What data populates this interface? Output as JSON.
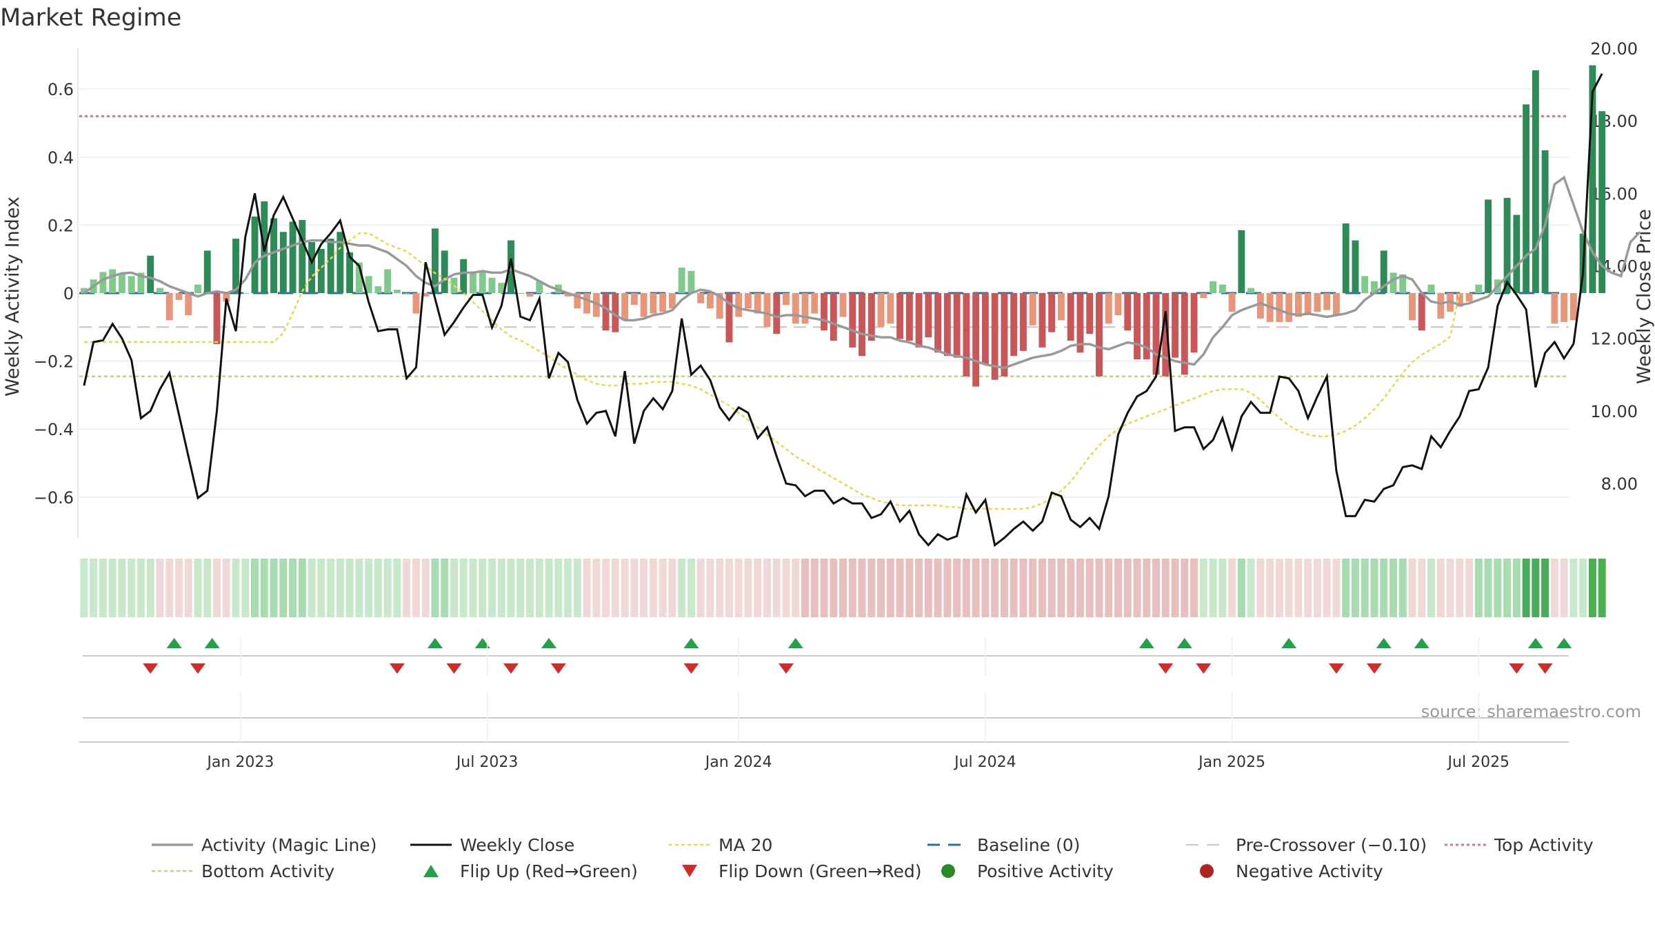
{
  "chart_data": {
    "type": "bar",
    "title": "Market Regime",
    "source_text": "source: sharemaestro.com",
    "y_left_label": "Weekly Activity Index",
    "y_right_label": "Weekly Close Price",
    "y_left_ticks": [
      "0.6",
      "0.4",
      "0.2",
      "0",
      "−0.2",
      "−0.4",
      "−0.6"
    ],
    "y_left_tick_values": [
      0.6,
      0.4,
      0.2,
      0,
      -0.2,
      -0.4,
      -0.6
    ],
    "y_right_ticks": [
      "20.00",
      "18.00",
      "16.00",
      "14.00",
      "12.00",
      "10.00",
      "8.00"
    ],
    "y_right_tick_values": [
      20,
      18,
      16,
      14,
      12,
      10,
      8
    ],
    "x_ticks": [
      "Jan 2023",
      "Jul 2023",
      "Jan 2024",
      "Jul 2024",
      "Jan 2025",
      "Jul 2025"
    ],
    "x_tick_weeks": [
      17,
      43,
      69.5,
      95.5,
      121.5,
      147.5
    ],
    "ylim_left": [
      -0.72,
      0.72
    ],
    "ylim_right": [
      6.5,
      20.0
    ],
    "weeks": 157,
    "top_activity": 0.52,
    "bottom_activity": -0.245,
    "pre_crossover": -0.1,
    "baseline": 0,
    "colors": {
      "pos_strong": "#2e8b57",
      "pos_weak": "#7fc98a",
      "neg_strong": "#c9575a",
      "neg_weak": "#e8967a",
      "magic_line": "#999999",
      "close": "#111111",
      "ma20": "#e8d84a",
      "baseline": "#2c6e9e",
      "pre_crossover": "#cccccc",
      "top_activity": "#e0708a",
      "bottom_activity": "#b5dc7a",
      "flip_up": "#22a04a",
      "flip_down": "#d12b2b",
      "positive_dot": "#2a8a2a",
      "negative_dot": "#b22222"
    },
    "activity": [
      0.015,
      0.04,
      0.062,
      0.07,
      0.058,
      0.05,
      0.06,
      0.11,
      0.015,
      -0.08,
      -0.02,
      -0.065,
      0.025,
      0.125,
      -0.15,
      -0.025,
      0.16,
      0.0,
      0.225,
      0.27,
      0.22,
      0.18,
      0.21,
      0.215,
      0.15,
      0.13,
      0.16,
      0.18,
      0.12,
      0.09,
      0.05,
      0.02,
      0.07,
      0.01,
      0.0,
      -0.06,
      -0.01,
      0.19,
      0.125,
      0.045,
      0.1,
      0.06,
      0.065,
      0.045,
      0.03,
      0.155,
      0.0,
      -0.01,
      0.035,
      0.0,
      0.025,
      -0.01,
      -0.045,
      -0.06,
      -0.07,
      -0.11,
      -0.115,
      -0.08,
      -0.035,
      -0.07,
      -0.06,
      -0.055,
      -0.045,
      0.075,
      0.065,
      -0.03,
      -0.045,
      -0.075,
      -0.145,
      -0.07,
      -0.045,
      -0.06,
      -0.1,
      -0.12,
      -0.035,
      -0.09,
      -0.09,
      -0.06,
      -0.11,
      -0.14,
      -0.07,
      -0.16,
      -0.185,
      -0.14,
      -0.1,
      -0.09,
      -0.135,
      -0.14,
      -0.16,
      -0.13,
      -0.175,
      -0.185,
      -0.19,
      -0.245,
      -0.275,
      -0.21,
      -0.255,
      -0.245,
      -0.185,
      -0.17,
      -0.095,
      -0.16,
      -0.115,
      -0.08,
      -0.14,
      -0.175,
      -0.12,
      -0.245,
      -0.09,
      -0.065,
      -0.11,
      -0.195,
      -0.195,
      -0.24,
      -0.245,
      -0.19,
      -0.24,
      -0.175,
      -0.015,
      0.035,
      0.025,
      -0.055,
      0.185,
      0.015,
      -0.075,
      -0.085,
      -0.085,
      -0.085,
      -0.07,
      -0.065,
      -0.055,
      -0.05,
      -0.065,
      0.205,
      0.155,
      0.05,
      0.035,
      0.125,
      0.06,
      0.055,
      -0.08,
      -0.11,
      0.025,
      -0.075,
      -0.055,
      -0.04,
      -0.025,
      0.025,
      0.275,
      0.04,
      0.28,
      0.23,
      0.555,
      0.655,
      0.42,
      -0.09,
      -0.085,
      -0.08,
      0.175,
      0.67,
      0.535
    ],
    "magic_line": [
      0.0,
      0.02,
      0.04,
      0.05,
      0.058,
      0.06,
      0.05,
      0.045,
      0.035,
      0.02,
      0.01,
      0.0,
      -0.01,
      0.0,
      0.005,
      0.0,
      0.01,
      0.04,
      0.09,
      0.11,
      0.12,
      0.13,
      0.14,
      0.15,
      0.155,
      0.155,
      0.15,
      0.15,
      0.145,
      0.14,
      0.14,
      0.13,
      0.12,
      0.1,
      0.08,
      0.05,
      0.03,
      0.02,
      0.04,
      0.055,
      0.06,
      0.06,
      0.065,
      0.06,
      0.06,
      0.07,
      0.06,
      0.05,
      0.035,
      0.02,
      0.01,
      0.0,
      -0.01,
      -0.02,
      -0.03,
      -0.045,
      -0.065,
      -0.08,
      -0.08,
      -0.075,
      -0.065,
      -0.06,
      -0.05,
      -0.02,
      0.0,
      0.01,
      0.005,
      -0.01,
      -0.03,
      -0.045,
      -0.05,
      -0.055,
      -0.06,
      -0.07,
      -0.065,
      -0.065,
      -0.07,
      -0.075,
      -0.08,
      -0.09,
      -0.1,
      -0.11,
      -0.12,
      -0.125,
      -0.13,
      -0.13,
      -0.14,
      -0.145,
      -0.155,
      -0.16,
      -0.17,
      -0.18,
      -0.185,
      -0.19,
      -0.2,
      -0.21,
      -0.215,
      -0.22,
      -0.21,
      -0.2,
      -0.19,
      -0.185,
      -0.18,
      -0.17,
      -0.155,
      -0.15,
      -0.15,
      -0.16,
      -0.165,
      -0.155,
      -0.145,
      -0.15,
      -0.16,
      -0.18,
      -0.19,
      -0.2,
      -0.205,
      -0.21,
      -0.18,
      -0.13,
      -0.1,
      -0.065,
      -0.05,
      -0.04,
      -0.03,
      -0.04,
      -0.05,
      -0.06,
      -0.065,
      -0.06,
      -0.065,
      -0.07,
      -0.065,
      -0.06,
      -0.05,
      -0.02,
      0.0,
      0.02,
      0.04,
      0.05,
      0.04,
      0.0,
      -0.025,
      -0.03,
      -0.025,
      -0.035,
      -0.03,
      -0.02,
      -0.01,
      0.02,
      0.05,
      0.08,
      0.11,
      0.13,
      0.2,
      0.32,
      0.34,
      0.26,
      0.18,
      0.12,
      0.08,
      0.06,
      0.05,
      0.15,
      0.18
    ],
    "close": [
      10.7,
      11.9,
      11.95,
      12.4,
      12.0,
      11.4,
      9.8,
      10.0,
      10.6,
      11.05,
      9.9,
      8.75,
      7.6,
      7.8,
      10.0,
      13.1,
      12.2,
      14.8,
      16.0,
      14.4,
      15.4,
      15.9,
      15.3,
      14.7,
      14.1,
      14.6,
      14.9,
      15.25,
      14.25,
      14.0,
      13.0,
      12.2,
      12.25,
      12.25,
      10.9,
      11.2,
      14.1,
      13.1,
      12.1,
      12.45,
      12.85,
      13.2,
      13.2,
      12.3,
      12.9,
      14.2,
      12.6,
      12.5,
      13.1,
      10.9,
      11.6,
      11.35,
      10.3,
      9.65,
      9.95,
      10.0,
      9.3,
      11.1,
      9.1,
      10.0,
      10.35,
      10.05,
      10.55,
      12.55,
      11.0,
      11.25,
      10.85,
      10.1,
      9.75,
      10.1,
      9.95,
      9.25,
      9.55,
      8.75,
      8.0,
      7.95,
      7.65,
      7.8,
      7.8,
      7.45,
      7.6,
      7.45,
      7.45,
      7.05,
      7.15,
      7.5,
      6.95,
      7.25,
      6.6,
      6.3,
      6.6,
      6.45,
      6.55,
      7.7,
      7.2,
      7.55,
      6.3,
      6.5,
      6.75,
      6.95,
      6.7,
      6.95,
      7.75,
      7.65,
      7.0,
      6.8,
      7.05,
      6.75,
      7.65,
      9.35,
      9.95,
      10.4,
      10.55,
      10.95,
      12.75,
      9.45,
      9.55,
      9.55,
      8.95,
      9.2,
      9.8,
      8.95,
      9.85,
      10.25,
      9.95,
      9.95,
      10.95,
      10.9,
      10.55,
      9.8,
      10.4,
      10.95,
      8.35,
      7.1,
      7.1,
      7.55,
      7.5,
      7.85,
      7.95,
      8.45,
      8.5,
      8.4,
      9.3,
      9.0,
      9.45,
      9.85,
      10.55,
      10.6,
      11.2,
      12.9,
      13.55,
      13.2,
      12.8,
      10.65,
      11.6,
      11.9,
      11.45,
      11.85,
      13.8,
      18.8,
      19.3
    ],
    "ma20": [
      11.9,
      11.9,
      11.9,
      11.9,
      11.9,
      11.9,
      11.9,
      11.9,
      11.9,
      11.9,
      11.9,
      11.9,
      11.9,
      11.9,
      11.9,
      11.9,
      11.9,
      11.9,
      11.9,
      11.9,
      11.9,
      12.15,
      12.7,
      13.3,
      13.7,
      13.95,
      14.2,
      14.5,
      14.7,
      14.9,
      14.9,
      14.75,
      14.6,
      14.5,
      14.4,
      14.2,
      14.0,
      13.8,
      13.65,
      13.45,
      13.25,
      13.0,
      12.75,
      12.5,
      12.25,
      12.05,
      11.95,
      11.8,
      11.65,
      11.5,
      11.3,
      11.15,
      11.0,
      10.85,
      10.75,
      10.7,
      10.7,
      10.75,
      10.75,
      10.75,
      10.8,
      10.8,
      10.8,
      10.75,
      10.7,
      10.6,
      10.45,
      10.3,
      10.15,
      9.95,
      9.75,
      9.55,
      9.35,
      9.15,
      8.95,
      8.75,
      8.6,
      8.45,
      8.3,
      8.15,
      8.0,
      7.85,
      7.7,
      7.6,
      7.5,
      7.45,
      7.4,
      7.4,
      7.4,
      7.4,
      7.4,
      7.35,
      7.35,
      7.3,
      7.3,
      7.3,
      7.3,
      7.3,
      7.3,
      7.3,
      7.35,
      7.45,
      7.6,
      7.8,
      8.05,
      8.4,
      8.75,
      9.05,
      9.3,
      9.5,
      9.65,
      9.75,
      9.85,
      9.95,
      10.05,
      10.15,
      10.25,
      10.35,
      10.45,
      10.55,
      10.6,
      10.6,
      10.6,
      10.5,
      10.3,
      10.05,
      9.8,
      9.6,
      9.45,
      9.35,
      9.3,
      9.3,
      9.35,
      9.45,
      9.6,
      9.8,
      10.05,
      10.35,
      10.7,
      11.05,
      11.35,
      11.55,
      11.7,
      11.85,
      12.05,
      13.3
    ],
    "regime_strip": [
      1,
      1,
      1,
      1,
      1,
      1,
      1,
      1,
      -1,
      -1,
      -1,
      -1,
      1,
      1,
      -1,
      -1,
      1,
      1,
      2,
      2,
      2,
      2,
      2,
      2,
      1,
      1,
      1,
      1,
      1,
      1,
      1,
      1,
      1,
      1,
      -1,
      -1,
      -1,
      2,
      2,
      1,
      1,
      1,
      1,
      1,
      1,
      1,
      1,
      1,
      1,
      1,
      1,
      1,
      1,
      -1,
      -1,
      -1,
      -1,
      -1,
      -1,
      -1,
      -1,
      -1,
      -1,
      1,
      1,
      -1,
      -1,
      -1,
      -1,
      -1,
      -1,
      -1,
      -1,
      -1,
      -1,
      -1,
      -2,
      -2,
      -2,
      -2,
      -2,
      -2,
      -2,
      -2,
      -2,
      -2,
      -2,
      -2,
      -2,
      -2,
      -2,
      -2,
      -2,
      -2,
      -2,
      -2,
      -2,
      -2,
      -2,
      -2,
      -2,
      -2,
      -2,
      -2,
      -2,
      -2,
      -2,
      -2,
      -2,
      -2,
      -2,
      -2,
      -2,
      -2,
      -2,
      -2,
      -2,
      -2,
      1,
      1,
      1,
      -1,
      2,
      1,
      -1,
      -1,
      -1,
      -1,
      -1,
      -1,
      -1,
      -1,
      -1,
      2,
      2,
      2,
      2,
      2,
      2,
      2,
      -1,
      -1,
      1,
      -1,
      -1,
      -1,
      -1,
      2,
      2,
      2,
      2,
      2,
      3,
      3,
      3,
      -1,
      -1,
      1,
      1,
      4,
      4
    ],
    "flip_up_weeks": [
      10.5,
      14.5,
      38,
      43,
      50,
      65,
      76,
      113,
      117,
      128,
      138,
      142,
      154,
      157
    ],
    "flip_down_weeks": [
      8,
      13,
      34,
      40,
      46,
      51,
      65,
      75,
      115,
      119,
      133,
      137,
      152,
      155
    ],
    "legend": [
      {
        "label": "Activity (Magic Line)",
        "kind": "line-magic"
      },
      {
        "label": "Weekly Close",
        "kind": "line-close"
      },
      {
        "label": "MA 20",
        "kind": "line-ma"
      },
      {
        "label": "Baseline (0)",
        "kind": "line-base"
      },
      {
        "label": "Pre-Crossover (−0.10)",
        "kind": "line-pre"
      },
      {
        "label": "Top Activity",
        "kind": "line-top"
      },
      {
        "label": "Bottom Activity",
        "kind": "line-bottom"
      },
      {
        "label": "Flip Up (Red→Green)",
        "kind": "tri-up"
      },
      {
        "label": "Flip Down (Green→Red)",
        "kind": "tri-down"
      },
      {
        "label": "Positive Activity",
        "kind": "dot-pos"
      },
      {
        "label": "Negative Activity",
        "kind": "dot-neg"
      }
    ]
  }
}
